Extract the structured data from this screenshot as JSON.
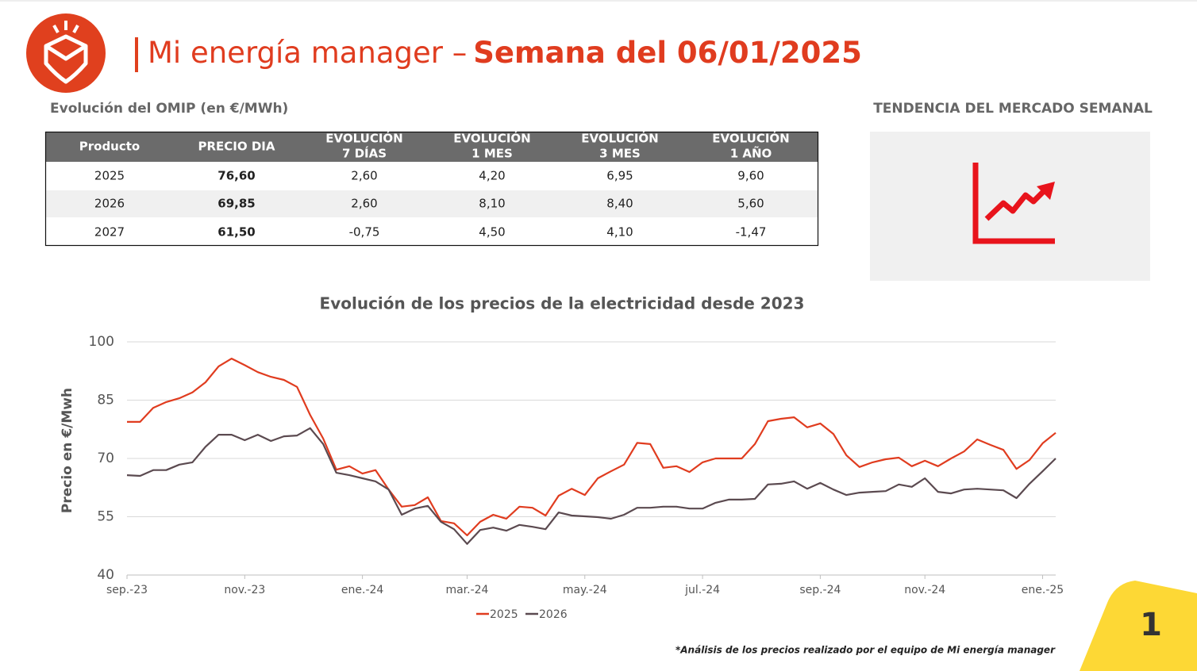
{
  "header": {
    "title": "Mi energía manager –",
    "subtitle": "Semana del 06/01/2025"
  },
  "table": {
    "title": "Evolución del OMIP (en €/MWh)",
    "columns": [
      [
        "Producto"
      ],
      [
        "PRECIO DIA"
      ],
      [
        "EVOLUCIÓN",
        "7 DÍAS"
      ],
      [
        "EVOLUCIÓN",
        "1 MES"
      ],
      [
        "EVOLUCIÓN",
        "3 MES"
      ],
      [
        "EVOLUCIÓN",
        "1 AÑO"
      ]
    ],
    "rows": [
      [
        "2025",
        "76,60",
        "2,60",
        "4,20",
        "6,95",
        "9,60"
      ],
      [
        "2026",
        "69,85",
        "2,60",
        "8,10",
        "8,40",
        "5,60"
      ],
      [
        "2027",
        "61,50",
        "-0,75",
        "4,50",
        "4,10",
        "-1,47"
      ]
    ]
  },
  "trend": {
    "title": "TENDENCIA DEL MERCADO SEMANAL"
  },
  "chart_data": {
    "type": "line",
    "title": "Evolución de los precios de la electricidad desde 2023",
    "y_label": "Precio en €/Mwh",
    "categories": [
      "sep.-23",
      null,
      null,
      null,
      null,
      null,
      null,
      null,
      null,
      "nov.-23",
      null,
      null,
      null,
      null,
      null,
      null,
      null,
      null,
      "ene.-24",
      null,
      null,
      null,
      null,
      null,
      null,
      null,
      "mar.-24",
      null,
      null,
      null,
      null,
      null,
      null,
      null,
      null,
      "may.-24",
      null,
      null,
      null,
      null,
      null,
      null,
      null,
      null,
      "jul.-24",
      null,
      null,
      null,
      null,
      null,
      null,
      null,
      null,
      "sep.-24",
      null,
      null,
      null,
      null,
      null,
      null,
      null,
      "nov.-24",
      null,
      null,
      null,
      null,
      null,
      null,
      null,
      null,
      "ene.-25",
      null
    ],
    "series": [
      {
        "name": "2025",
        "color": "#e03c1f",
        "values": [
          79.4,
          79.4,
          83,
          84.5,
          85.5,
          87,
          89.6,
          93.7,
          95.7,
          94,
          92.2,
          91,
          90.2,
          88.4,
          81.2,
          75.1,
          67.1,
          68,
          66.1,
          67,
          62,
          57.6,
          58,
          60,
          53.9,
          53.3,
          50.2,
          53.7,
          55.5,
          54.5,
          57.6,
          57.3,
          55.3,
          60.4,
          62.2,
          60.6,
          64.9,
          66.7,
          68.4,
          74,
          73.7,
          67.6,
          68,
          66.5,
          69,
          70,
          70,
          70,
          73.7,
          79.6,
          80.2,
          80.6,
          78,
          79,
          76.3,
          70.8,
          67.8,
          69,
          69.8,
          70.2,
          68,
          69.4,
          68,
          70,
          71.8,
          74.9,
          73.5,
          72.2,
          67.3,
          69.6,
          73.9,
          76.6
        ]
      },
      {
        "name": "2026",
        "color": "#5b4a50",
        "values": [
          65.7,
          65.5,
          67,
          67,
          68.4,
          69,
          73,
          76.1,
          76.1,
          74.7,
          76.1,
          74.5,
          75.7,
          75.9,
          77.8,
          73.7,
          66.3,
          65.7,
          64.9,
          64.1,
          62,
          55.5,
          57.1,
          57.8,
          53.7,
          51.8,
          48,
          51.6,
          52.2,
          51.4,
          52.9,
          52.4,
          51.8,
          56.1,
          55.3,
          55.1,
          54.9,
          54.5,
          55.5,
          57.3,
          57.3,
          57.6,
          57.6,
          57.1,
          57.1,
          58.6,
          59.4,
          59.4,
          59.6,
          63.3,
          63.5,
          64.1,
          62.2,
          63.7,
          62,
          60.6,
          61.2,
          61.4,
          61.6,
          63.3,
          62.7,
          64.9,
          61.4,
          61,
          62,
          62.2,
          62,
          61.8,
          59.8,
          63.5,
          66.7,
          70
        ]
      }
    ],
    "ylim": [
      40,
      100
    ],
    "yticks": [
      40,
      55,
      70,
      85,
      100
    ],
    "grid": true,
    "legend": "bottom"
  },
  "footnote": "*Análisis de los precios realizado por el equipo de Mi energía manager",
  "page_number": "1"
}
